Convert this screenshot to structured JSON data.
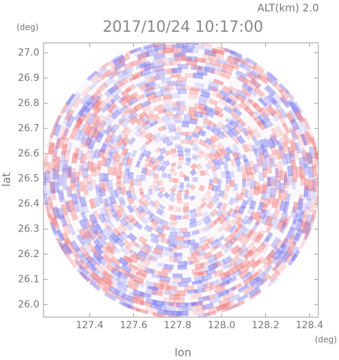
{
  "chart_data": {
    "type": "radar-image",
    "title": "2017/10/24 10:17:00",
    "subtitle": "ALT(km) 2.0",
    "x_label": "lon",
    "y_label": "lat",
    "x_unit": "(deg)",
    "y_unit": "(deg)",
    "xlim": [
      127.19,
      128.44
    ],
    "ylim": [
      25.95,
      27.04
    ],
    "xticks": [
      127.4,
      127.6,
      127.8,
      {
        "value": 128.0,
        "label": "128.0"
      },
      128.2,
      128.4
    ],
    "yticks": [
      {
        "value": 26.0,
        "label": "26.0"
      },
      26.1,
      26.2,
      26.3,
      26.4,
      26.5,
      26.6,
      26.7,
      26.8,
      26.9,
      {
        "value": 27.0,
        "label": "27.0"
      }
    ]
  }
}
